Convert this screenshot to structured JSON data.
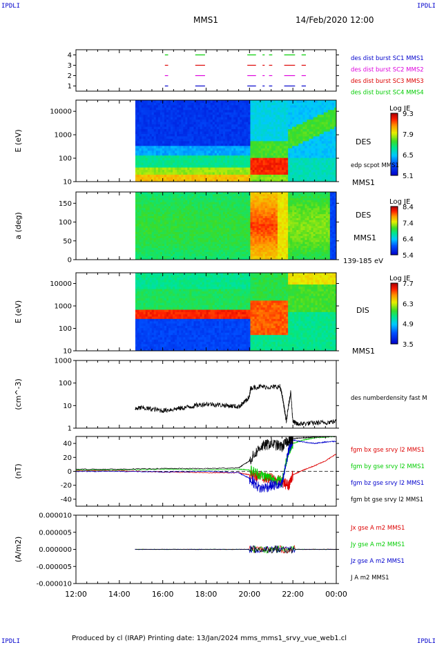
{
  "corner_label": "IPDLI",
  "header": {
    "spacecraft": "MMS1",
    "datetime": "14/Feb/2020 12:00"
  },
  "footer": "Produced by cl (IRAP)   Printing date: 13/Jan/2024   mms_mms1_srvy_vue_web1.cl",
  "time_axis": {
    "ticks": [
      "12:00",
      "14:00",
      "16:00",
      "18:00",
      "20:00",
      "22:00",
      "00:00"
    ]
  },
  "colors": {
    "blue": "#0000cc",
    "magenta": "#dd00dd",
    "red": "#dd0000",
    "green": "#00cc00",
    "black": "#000000"
  },
  "chart_data": [
    {
      "type": "timeline",
      "panel": "burst-availability",
      "yticks": [
        "1",
        "2",
        "3",
        "4"
      ],
      "legend": [
        {
          "label": "des dist burst SC1 MMS1",
          "color": "#0000cc"
        },
        {
          "label": "des dist burst SC2 MMS2",
          "color": "#dd00dd"
        },
        {
          "label": "des dist burst SC3 MMS3",
          "color": "#dd0000"
        },
        {
          "label": "des dist burst SC4 MMS4",
          "color": "#00cc00"
        }
      ],
      "intervals_hours": [
        [
          16.1,
          16.25
        ],
        [
          17.5,
          17.95
        ],
        [
          19.9,
          20.3
        ],
        [
          20.6,
          20.7
        ],
        [
          20.9,
          21.05
        ],
        [
          21.6,
          22.1
        ],
        [
          22.4,
          22.6
        ]
      ]
    },
    {
      "type": "heatmap",
      "panel": "des-energy-spectrogram",
      "ylabel": "E (eV)",
      "yscale": "log",
      "ylim": [
        10,
        30000
      ],
      "yticks": [
        "10",
        "100",
        "1000",
        "10000"
      ],
      "instrument": "DES",
      "sub_label": "edp scpot MMS1",
      "spacecraft": "MMS1",
      "colorbar": {
        "title": "Log JE",
        "ticks": [
          "9.3",
          "7.9",
          "6.5",
          "5.1"
        ],
        "min": 5.1,
        "max": 9.3
      },
      "data_start_hour": 14.72
    },
    {
      "type": "heatmap",
      "panel": "des-pitch-angle",
      "ylabel": "a (deg)",
      "ylim": [
        0,
        180
      ],
      "yticks": [
        "0",
        "50",
        "100",
        "150"
      ],
      "instrument": "DES",
      "spacecraft": "MMS1",
      "energy_band": "139-185 eV",
      "colorbar": {
        "title": "Log JE",
        "ticks": [
          "8.4",
          "7.4",
          "6.4",
          "5.4"
        ],
        "min": 5.4,
        "max": 8.4
      },
      "data_start_hour": 14.72
    },
    {
      "type": "heatmap",
      "panel": "dis-energy-spectrogram",
      "ylabel": "E (eV)",
      "yscale": "log",
      "ylim": [
        10,
        30000
      ],
      "yticks": [
        "10",
        "100",
        "1000",
        "10000"
      ],
      "instrument": "DIS",
      "spacecraft": "MMS1",
      "colorbar": {
        "title": "Log JE",
        "ticks": [
          "7.7",
          "6.3",
          "4.9",
          "3.5"
        ],
        "min": 3.5,
        "max": 7.7
      },
      "data_start_hour": 14.72
    },
    {
      "type": "line",
      "panel": "electron-density",
      "ylabel": "(cm^-3)",
      "yscale": "log",
      "ylim": [
        1,
        1000
      ],
      "yticks": [
        "1",
        "10",
        "100",
        "1000"
      ],
      "series": [
        {
          "name": "des numberdensity fast M",
          "color": "#000000",
          "x": [
            14.72,
            15.0,
            15.5,
            16.0,
            16.5,
            17.0,
            17.5,
            18.0,
            18.5,
            19.0,
            19.5,
            19.8,
            20.0,
            20.05,
            20.5,
            21.0,
            21.4,
            21.5,
            21.6,
            21.7,
            21.8,
            21.9,
            22.0,
            22.2,
            22.5,
            23.0,
            23.5,
            24.0
          ],
          "y": [
            7,
            8,
            7,
            6,
            7,
            8,
            10,
            12,
            11,
            10,
            9,
            15,
            25,
            60,
            70,
            65,
            70,
            30,
            8,
            2,
            10,
            40,
            2,
            1.5,
            1.6,
            1.7,
            1.8,
            2.0
          ]
        }
      ]
    },
    {
      "type": "line",
      "panel": "magnetic-field",
      "ylabel": "(nT)",
      "ylim": [
        -50,
        50
      ],
      "yticks": [
        "-40",
        "-20",
        "0",
        "20",
        "40"
      ],
      "series": [
        {
          "name": "fgm bx gse srvy l2 MMS1",
          "color": "#dd0000",
          "x": [
            12.0,
            14.0,
            16.0,
            18.0,
            19.5,
            20.0,
            20.5,
            21.0,
            21.5,
            21.8,
            22.0,
            22.5,
            23.0,
            23.5,
            24.0
          ],
          "y": [
            1,
            1,
            -1,
            -2,
            -2,
            -5,
            -8,
            -10,
            -15,
            -20,
            -5,
            2,
            8,
            15,
            25
          ]
        },
        {
          "name": "fgm by gse srvy l2 MMS1",
          "color": "#00cc00",
          "x": [
            12.0,
            14.0,
            16.0,
            18.0,
            19.5,
            20.0,
            20.5,
            21.0,
            21.5,
            21.8,
            22.0,
            22.5,
            23.0,
            24.0
          ],
          "y": [
            2,
            2,
            3,
            2,
            3,
            2,
            -5,
            -10,
            -15,
            30,
            40,
            45,
            48,
            50
          ]
        },
        {
          "name": "fgm bz gse srvy l2 MMS1",
          "color": "#0000cc",
          "x": [
            12.0,
            14.0,
            16.0,
            18.0,
            19.5,
            20.0,
            20.5,
            21.0,
            21.5,
            21.8,
            22.0,
            22.5,
            23.0,
            23.5,
            24.0
          ],
          "y": [
            0,
            0,
            -1,
            0,
            -2,
            -10,
            -25,
            -20,
            -20,
            30,
            45,
            42,
            40,
            42,
            43
          ]
        },
        {
          "name": "fgm bt gse srvy l2 MMS1",
          "color": "#000000",
          "x": [
            12.0,
            14.0,
            16.0,
            18.0,
            19.5,
            20.0,
            20.5,
            21.0,
            21.5,
            21.8,
            22.0,
            22.5,
            23.0,
            24.0
          ],
          "y": [
            3,
            3,
            4,
            4,
            5,
            15,
            35,
            40,
            35,
            45,
            47,
            48,
            49,
            50
          ]
        }
      ]
    },
    {
      "type": "line",
      "panel": "current-density",
      "ylabel": "(A/m2)",
      "ylim": [
        -1e-05,
        1e-05
      ],
      "yticks": [
        "-0.000010",
        "-0.000005",
        "0.000000",
        "0.000005",
        "0.000010"
      ],
      "series": [
        {
          "name": "Jx gse A m2 MMS1",
          "color": "#dd0000"
        },
        {
          "name": "Jy gse A m2 MMS1",
          "color": "#00cc00"
        },
        {
          "name": "Jz gse A m2 MMS1",
          "color": "#0000cc"
        },
        {
          "name": "J A m2 MMS1",
          "color": "#000000"
        }
      ],
      "active_interval_hours": [
        20.0,
        22.1
      ]
    }
  ]
}
